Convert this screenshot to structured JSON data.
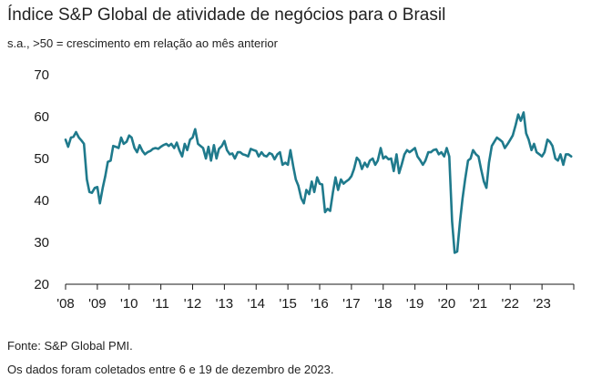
{
  "header": {
    "title": "Índice S&P Global de atividade de negócios para o Brasil",
    "subtitle": "s.a., >50 = crescimento em relação ao mês anterior"
  },
  "footer": {
    "source": "Fonte: S&P Global PMI.",
    "note": "Os dados foram coletados entre 6 e 19  de dezembro de 2023."
  },
  "chart_data": {
    "type": "line",
    "title": "Índice S&P Global de atividade de negócios para o Brasil",
    "subtitle": "s.a., >50 = crescimento em relação ao mês anterior",
    "xlabel": "",
    "ylabel": "",
    "ylim": [
      20,
      70
    ],
    "yticks": [
      20,
      30,
      40,
      50,
      60,
      70
    ],
    "xlim": [
      2008.0,
      2024.0
    ],
    "xticks": [
      {
        "x": 2008,
        "label": "'08"
      },
      {
        "x": 2009,
        "label": "'09"
      },
      {
        "x": 2010,
        "label": "'10"
      },
      {
        "x": 2011,
        "label": "'11"
      },
      {
        "x": 2012,
        "label": "'12"
      },
      {
        "x": 2013,
        "label": "'13"
      },
      {
        "x": 2014,
        "label": "'14"
      },
      {
        "x": 2015,
        "label": "'15"
      },
      {
        "x": 2016,
        "label": "'16"
      },
      {
        "x": 2017,
        "label": "'17"
      },
      {
        "x": 2018,
        "label": "'18"
      },
      {
        "x": 2019,
        "label": "'19"
      },
      {
        "x": 2020,
        "label": "'20"
      },
      {
        "x": 2021,
        "label": "'21"
      },
      {
        "x": 2022,
        "label": "'22"
      },
      {
        "x": 2023,
        "label": "'23"
      }
    ],
    "grid": false,
    "color": "#1f7a8c",
    "series": [
      {
        "points": [
          [
            2008.0,
            54.5
          ],
          [
            2008.08,
            52.8
          ],
          [
            2008.17,
            55.0
          ],
          [
            2008.25,
            55.2
          ],
          [
            2008.33,
            56.3
          ],
          [
            2008.42,
            55.0
          ],
          [
            2008.5,
            54.3
          ],
          [
            2008.58,
            53.5
          ],
          [
            2008.67,
            45.0
          ],
          [
            2008.75,
            42.0
          ],
          [
            2008.83,
            41.8
          ],
          [
            2008.92,
            43.0
          ],
          [
            2009.0,
            43.2
          ],
          [
            2009.08,
            39.3
          ],
          [
            2009.17,
            43.0
          ],
          [
            2009.25,
            45.8
          ],
          [
            2009.33,
            49.2
          ],
          [
            2009.42,
            49.5
          ],
          [
            2009.5,
            53.0
          ],
          [
            2009.58,
            52.8
          ],
          [
            2009.67,
            52.5
          ],
          [
            2009.75,
            55.0
          ],
          [
            2009.83,
            53.5
          ],
          [
            2009.92,
            54.0
          ],
          [
            2010.0,
            55.5
          ],
          [
            2010.08,
            55.0
          ],
          [
            2010.17,
            52.5
          ],
          [
            2010.25,
            51.5
          ],
          [
            2010.33,
            53.2
          ],
          [
            2010.42,
            51.8
          ],
          [
            2010.5,
            51.0
          ],
          [
            2010.58,
            51.5
          ],
          [
            2010.67,
            51.8
          ],
          [
            2010.75,
            52.3
          ],
          [
            2010.83,
            52.5
          ],
          [
            2010.92,
            52.3
          ],
          [
            2011.0,
            52.8
          ],
          [
            2011.08,
            53.2
          ],
          [
            2011.17,
            53.5
          ],
          [
            2011.25,
            53.0
          ],
          [
            2011.33,
            53.5
          ],
          [
            2011.42,
            52.5
          ],
          [
            2011.5,
            53.8
          ],
          [
            2011.58,
            52.0
          ],
          [
            2011.67,
            50.5
          ],
          [
            2011.75,
            53.5
          ],
          [
            2011.83,
            52.0
          ],
          [
            2011.92,
            54.5
          ],
          [
            2012.0,
            55.0
          ],
          [
            2012.08,
            57.0
          ],
          [
            2012.17,
            53.5
          ],
          [
            2012.25,
            53.0
          ],
          [
            2012.33,
            52.5
          ],
          [
            2012.42,
            50.0
          ],
          [
            2012.5,
            52.8
          ],
          [
            2012.58,
            49.5
          ],
          [
            2012.67,
            53.2
          ],
          [
            2012.75,
            50.0
          ],
          [
            2012.83,
            52.3
          ],
          [
            2012.92,
            53.0
          ],
          [
            2013.0,
            54.2
          ],
          [
            2013.08,
            52.0
          ],
          [
            2013.17,
            51.0
          ],
          [
            2013.25,
            51.2
          ],
          [
            2013.33,
            50.0
          ],
          [
            2013.42,
            51.5
          ],
          [
            2013.5,
            51.5
          ],
          [
            2013.58,
            51.0
          ],
          [
            2013.67,
            50.8
          ],
          [
            2013.75,
            50.5
          ],
          [
            2013.83,
            52.3
          ],
          [
            2013.92,
            52.0
          ],
          [
            2014.0,
            51.8
          ],
          [
            2014.08,
            50.5
          ],
          [
            2014.17,
            51.5
          ],
          [
            2014.25,
            50.7
          ],
          [
            2014.33,
            50.5
          ],
          [
            2014.42,
            51.3
          ],
          [
            2014.5,
            51.0
          ],
          [
            2014.58,
            49.8
          ],
          [
            2014.67,
            51.0
          ],
          [
            2014.75,
            51.5
          ],
          [
            2014.83,
            48.5
          ],
          [
            2014.92,
            49.0
          ],
          [
            2015.0,
            48.5
          ],
          [
            2015.08,
            52.0
          ],
          [
            2015.17,
            48.0
          ],
          [
            2015.25,
            45.0
          ],
          [
            2015.33,
            43.5
          ],
          [
            2015.42,
            40.5
          ],
          [
            2015.5,
            39.3
          ],
          [
            2015.58,
            42.5
          ],
          [
            2015.67,
            41.5
          ],
          [
            2015.75,
            44.5
          ],
          [
            2015.83,
            42.0
          ],
          [
            2015.92,
            45.5
          ],
          [
            2016.0,
            44.0
          ],
          [
            2016.08,
            43.8
          ],
          [
            2016.17,
            37.2
          ],
          [
            2016.25,
            38.0
          ],
          [
            2016.33,
            37.5
          ],
          [
            2016.42,
            42.0
          ],
          [
            2016.5,
            45.5
          ],
          [
            2016.58,
            42.5
          ],
          [
            2016.67,
            45.0
          ],
          [
            2016.75,
            44.0
          ],
          [
            2016.83,
            44.5
          ],
          [
            2016.92,
            45.0
          ],
          [
            2017.0,
            45.8
          ],
          [
            2017.08,
            47.5
          ],
          [
            2017.17,
            50.2
          ],
          [
            2017.25,
            49.5
          ],
          [
            2017.33,
            47.5
          ],
          [
            2017.42,
            49.0
          ],
          [
            2017.5,
            48.0
          ],
          [
            2017.58,
            49.5
          ],
          [
            2017.67,
            50.0
          ],
          [
            2017.75,
            48.5
          ],
          [
            2017.83,
            49.5
          ],
          [
            2017.92,
            52.5
          ],
          [
            2018.0,
            50.0
          ],
          [
            2018.08,
            50.5
          ],
          [
            2018.17,
            49.8
          ],
          [
            2018.25,
            50.0
          ],
          [
            2018.33,
            47.0
          ],
          [
            2018.42,
            51.0
          ],
          [
            2018.5,
            46.5
          ],
          [
            2018.58,
            48.5
          ],
          [
            2018.67,
            51.0
          ],
          [
            2018.75,
            52.0
          ],
          [
            2018.83,
            51.5
          ],
          [
            2018.92,
            52.0
          ],
          [
            2019.0,
            52.5
          ],
          [
            2019.08,
            50.5
          ],
          [
            2019.17,
            49.5
          ],
          [
            2019.25,
            48.5
          ],
          [
            2019.33,
            49.5
          ],
          [
            2019.42,
            51.5
          ],
          [
            2019.5,
            51.5
          ],
          [
            2019.58,
            52.0
          ],
          [
            2019.67,
            52.2
          ],
          [
            2019.75,
            51.0
          ],
          [
            2019.83,
            51.5
          ],
          [
            2019.92,
            50.5
          ],
          [
            2020.0,
            52.5
          ],
          [
            2020.08,
            50.5
          ],
          [
            2020.17,
            35.0
          ],
          [
            2020.25,
            27.5
          ],
          [
            2020.33,
            27.8
          ],
          [
            2020.42,
            35.0
          ],
          [
            2020.5,
            40.5
          ],
          [
            2020.58,
            45.0
          ],
          [
            2020.67,
            49.5
          ],
          [
            2020.75,
            50.0
          ],
          [
            2020.83,
            52.0
          ],
          [
            2020.92,
            51.0
          ],
          [
            2021.0,
            50.5
          ],
          [
            2021.08,
            47.5
          ],
          [
            2021.17,
            44.5
          ],
          [
            2021.25,
            43.0
          ],
          [
            2021.33,
            49.0
          ],
          [
            2021.42,
            53.0
          ],
          [
            2021.5,
            54.0
          ],
          [
            2021.58,
            55.0
          ],
          [
            2021.67,
            54.5
          ],
          [
            2021.75,
            54.0
          ],
          [
            2021.83,
            52.5
          ],
          [
            2021.92,
            53.5
          ],
          [
            2022.0,
            54.5
          ],
          [
            2022.08,
            55.5
          ],
          [
            2022.17,
            58.0
          ],
          [
            2022.25,
            60.5
          ],
          [
            2022.33,
            59.0
          ],
          [
            2022.42,
            61.0
          ],
          [
            2022.5,
            56.0
          ],
          [
            2022.58,
            54.5
          ],
          [
            2022.67,
            52.0
          ],
          [
            2022.75,
            53.5
          ],
          [
            2022.83,
            51.5
          ],
          [
            2022.92,
            51.0
          ],
          [
            2023.0,
            50.5
          ],
          [
            2023.08,
            51.5
          ],
          [
            2023.17,
            54.5
          ],
          [
            2023.25,
            54.0
          ],
          [
            2023.33,
            53.0
          ],
          [
            2023.42,
            50.0
          ],
          [
            2023.5,
            49.5
          ],
          [
            2023.58,
            51.0
          ],
          [
            2023.67,
            48.5
          ],
          [
            2023.75,
            51.0
          ],
          [
            2023.83,
            51.0
          ],
          [
            2023.92,
            50.5
          ]
        ]
      }
    ]
  }
}
